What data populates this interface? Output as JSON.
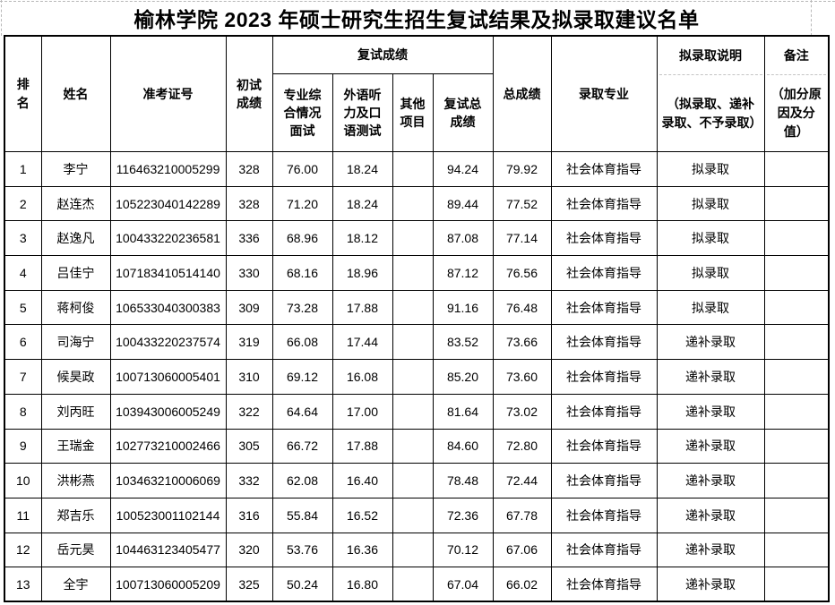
{
  "title": "榆林学院 2023 年硕士研究生招生复试结果及拟录取建议名单",
  "table": {
    "headers": {
      "rank": "排名",
      "name": "姓名",
      "ticket": "准考证号",
      "initial": "初试成绩",
      "retest_group": "复试成绩",
      "retest_subs": {
        "interview": "专业综合情况面试",
        "foreign": "外语听力及口语测试",
        "other": "其他项目",
        "retest_total": "复试总成绩"
      },
      "total": "总成绩",
      "major": "录取专业",
      "admission_label": "拟录取说明",
      "admission_note": "（拟录取、递补录取、不予录取）",
      "remark_label": "备注",
      "remark_note": "（加分原因及分值）"
    },
    "rows": [
      {
        "rank": "1",
        "name": "李宁",
        "ticket": "116463210005299",
        "initial": "328",
        "interview": "76.00",
        "foreign": "18.24",
        "other": "",
        "retest_total": "94.24",
        "total": "79.92",
        "major": "社会体育指导",
        "admission": "拟录取",
        "remark": ""
      },
      {
        "rank": "2",
        "name": "赵连杰",
        "ticket": "105223040142289",
        "initial": "328",
        "interview": "71.20",
        "foreign": "18.24",
        "other": "",
        "retest_total": "89.44",
        "total": "77.52",
        "major": "社会体育指导",
        "admission": "拟录取",
        "remark": ""
      },
      {
        "rank": "3",
        "name": "赵逸凡",
        "ticket": "100433220236581",
        "initial": "336",
        "interview": "68.96",
        "foreign": "18.12",
        "other": "",
        "retest_total": "87.08",
        "total": "77.14",
        "major": "社会体育指导",
        "admission": "拟录取",
        "remark": ""
      },
      {
        "rank": "4",
        "name": "吕佳宁",
        "ticket": "107183410514140",
        "initial": "330",
        "interview": "68.16",
        "foreign": "18.96",
        "other": "",
        "retest_total": "87.12",
        "total": "76.56",
        "major": "社会体育指导",
        "admission": "拟录取",
        "remark": ""
      },
      {
        "rank": "5",
        "name": "蒋柯俊",
        "ticket": "106533040300383",
        "initial": "309",
        "interview": "73.28",
        "foreign": "17.88",
        "other": "",
        "retest_total": "91.16",
        "total": "76.48",
        "major": "社会体育指导",
        "admission": "拟录取",
        "remark": ""
      },
      {
        "rank": "6",
        "name": "司海宁",
        "ticket": "100433220237574",
        "initial": "319",
        "interview": "66.08",
        "foreign": "17.44",
        "other": "",
        "retest_total": "83.52",
        "total": "73.66",
        "major": "社会体育指导",
        "admission": "递补录取",
        "remark": ""
      },
      {
        "rank": "7",
        "name": "候昊政",
        "ticket": "100713060005401",
        "initial": "310",
        "interview": "69.12",
        "foreign": "16.08",
        "other": "",
        "retest_total": "85.20",
        "total": "73.60",
        "major": "社会体育指导",
        "admission": "递补录取",
        "remark": ""
      },
      {
        "rank": "8",
        "name": "刘丙旺",
        "ticket": "103943006005249",
        "initial": "322",
        "interview": "64.64",
        "foreign": "17.00",
        "other": "",
        "retest_total": "81.64",
        "total": "73.02",
        "major": "社会体育指导",
        "admission": "递补录取",
        "remark": ""
      },
      {
        "rank": "9",
        "name": "王瑞金",
        "ticket": "102773210002466",
        "initial": "305",
        "interview": "66.72",
        "foreign": "17.88",
        "other": "",
        "retest_total": "84.60",
        "total": "72.80",
        "major": "社会体育指导",
        "admission": "递补录取",
        "remark": ""
      },
      {
        "rank": "10",
        "name": "洪彬燕",
        "ticket": "103463210006069",
        "initial": "332",
        "interview": "62.08",
        "foreign": "16.40",
        "other": "",
        "retest_total": "78.48",
        "total": "72.44",
        "major": "社会体育指导",
        "admission": "递补录取",
        "remark": ""
      },
      {
        "rank": "11",
        "name": "郑吉乐",
        "ticket": "100523001102144",
        "initial": "316",
        "interview": "55.84",
        "foreign": "16.52",
        "other": "",
        "retest_total": "72.36",
        "total": "67.78",
        "major": "社会体育指导",
        "admission": "递补录取",
        "remark": ""
      },
      {
        "rank": "12",
        "name": "岳元昊",
        "ticket": "104463123405477",
        "initial": "320",
        "interview": "53.76",
        "foreign": "16.36",
        "other": "",
        "retest_total": "70.12",
        "total": "67.06",
        "major": "社会体育指导",
        "admission": "递补录取",
        "remark": ""
      },
      {
        "rank": "13",
        "name": "全宇",
        "ticket": "100713060005209",
        "initial": "325",
        "interview": "50.24",
        "foreign": "16.80",
        "other": "",
        "retest_total": "67.04",
        "total": "66.02",
        "major": "社会体育指导",
        "admission": "递补录取",
        "remark": ""
      }
    ]
  }
}
